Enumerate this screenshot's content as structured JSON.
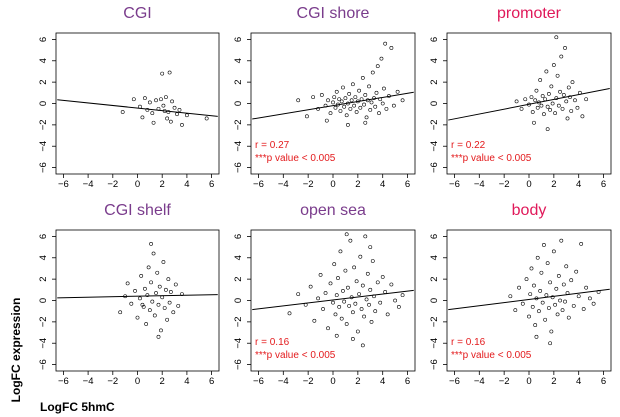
{
  "figure": {
    "ylabel": "LogFC expression",
    "xlabel": "LogFC 5hmC"
  },
  "colors": {
    "title_purple": "#7a3c8c",
    "title_pink": "#e0195a",
    "annotation_red": "#e31a1c",
    "points": "#000000",
    "line": "#000000"
  },
  "chart_data": [
    {
      "type": "scatter",
      "title": "CGI",
      "title_color": "purple",
      "xlim": [
        -6,
        6
      ],
      "ylim": [
        -6,
        6
      ],
      "xticks": [
        -6,
        -4,
        -2,
        0,
        2,
        4,
        6
      ],
      "yticks": [
        -6,
        -4,
        -2,
        0,
        2,
        4,
        6
      ],
      "regression": {
        "x": [
          -6.5,
          6.5
        ],
        "y": [
          0.35,
          -1.2
        ]
      },
      "annotation": null,
      "points": [
        [
          -1.2,
          -0.8
        ],
        [
          -0.3,
          0.4
        ],
        [
          0.2,
          -0.3
        ],
        [
          0.4,
          -1.3
        ],
        [
          0.6,
          0.5
        ],
        [
          0.8,
          -0.6
        ],
        [
          1.0,
          0.1
        ],
        [
          1.2,
          -0.9
        ],
        [
          1.3,
          -1.8
        ],
        [
          1.5,
          0.3
        ],
        [
          1.7,
          -0.5
        ],
        [
          1.9,
          0.4
        ],
        [
          2.0,
          2.8
        ],
        [
          2.1,
          -0.2
        ],
        [
          2.2,
          -0.7
        ],
        [
          2.3,
          0.6
        ],
        [
          2.4,
          -1.4
        ],
        [
          2.5,
          -0.8
        ],
        [
          2.6,
          2.9
        ],
        [
          2.7,
          -1.7
        ],
        [
          2.8,
          0.2
        ],
        [
          3.0,
          -0.4
        ],
        [
          3.2,
          -1.0
        ],
        [
          3.4,
          -0.6
        ],
        [
          3.6,
          -2.0
        ],
        [
          4.0,
          -1.1
        ],
        [
          5.6,
          -1.4
        ]
      ]
    },
    {
      "type": "scatter",
      "title": "CGI shore",
      "title_color": "purple",
      "xlim": [
        -6,
        6
      ],
      "ylim": [
        -6,
        6
      ],
      "xticks": [
        -6,
        -4,
        -2,
        0,
        2,
        4,
        6
      ],
      "yticks": [
        -6,
        -4,
        -2,
        0,
        2,
        4,
        6
      ],
      "regression": {
        "x": [
          -6.5,
          6.5
        ],
        "y": [
          -1.45,
          1.05
        ]
      },
      "annotation": {
        "lines": [
          "r = 0.27",
          "***p value < 0.005"
        ]
      },
      "points": [
        [
          -2.8,
          0.3
        ],
        [
          -2.1,
          -1.2
        ],
        [
          -1.6,
          0.6
        ],
        [
          -1.2,
          -0.5
        ],
        [
          -0.9,
          0.8
        ],
        [
          -0.6,
          -0.2
        ],
        [
          -0.4,
          0.3
        ],
        [
          -0.2,
          -0.9
        ],
        [
          0.0,
          0.1
        ],
        [
          0.1,
          0.6
        ],
        [
          0.2,
          -0.4
        ],
        [
          0.3,
          1.1
        ],
        [
          0.4,
          -0.1
        ],
        [
          0.5,
          0.4
        ],
        [
          0.6,
          -0.7
        ],
        [
          0.7,
          0.2
        ],
        [
          0.8,
          1.5
        ],
        [
          0.9,
          -0.3
        ],
        [
          1.0,
          0.5
        ],
        [
          1.1,
          -1.1
        ],
        [
          1.2,
          0.0
        ],
        [
          1.3,
          0.9
        ],
        [
          1.4,
          -0.5
        ],
        [
          1.5,
          0.3
        ],
        [
          1.6,
          1.8
        ],
        [
          1.7,
          -0.2
        ],
        [
          1.8,
          0.6
        ],
        [
          1.9,
          -0.8
        ],
        [
          2.0,
          0.2
        ],
        [
          2.1,
          1.2
        ],
        [
          2.2,
          -0.4
        ],
        [
          2.3,
          0.4
        ],
        [
          2.4,
          2.4
        ],
        [
          2.5,
          -0.1
        ],
        [
          2.6,
          0.8
        ],
        [
          2.7,
          -1.3
        ],
        [
          2.8,
          0.3
        ],
        [
          2.9,
          1.6
        ],
        [
          3.0,
          -0.6
        ],
        [
          3.1,
          0.1
        ],
        [
          3.2,
          2.9
        ],
        [
          3.3,
          0.5
        ],
        [
          3.4,
          -0.3
        ],
        [
          3.5,
          1.0
        ],
        [
          3.6,
          3.5
        ],
        [
          3.7,
          -0.9
        ],
        [
          3.8,
          0.4
        ],
        [
          3.9,
          4.2
        ],
        [
          4.0,
          0.0
        ],
        [
          4.1,
          1.4
        ],
        [
          4.2,
          5.6
        ],
        [
          4.3,
          -0.5
        ],
        [
          4.5,
          0.7
        ],
        [
          4.7,
          5.2
        ],
        [
          4.9,
          -0.2
        ],
        [
          5.2,
          1.1
        ],
        [
          5.6,
          0.3
        ],
        [
          -0.5,
          -1.6
        ],
        [
          1.2,
          -2.0
        ],
        [
          2.6,
          -1.8
        ]
      ]
    },
    {
      "type": "scatter",
      "title": "promoter",
      "title_color": "pink",
      "xlim": [
        -6,
        6
      ],
      "ylim": [
        -6,
        6
      ],
      "xticks": [
        -6,
        -4,
        -2,
        0,
        2,
        4,
        6
      ],
      "yticks": [
        -6,
        -4,
        -2,
        0,
        2,
        4,
        6
      ],
      "regression": {
        "x": [
          -6.5,
          6.5
        ],
        "y": [
          -1.55,
          1.4
        ]
      },
      "annotation": {
        "lines": [
          "r = 0.22",
          "***p value < 0.005"
        ]
      },
      "points": [
        [
          -1.0,
          0.2
        ],
        [
          -0.6,
          -0.5
        ],
        [
          -0.3,
          0.4
        ],
        [
          0.0,
          -0.1
        ],
        [
          0.2,
          0.6
        ],
        [
          0.3,
          -0.8
        ],
        [
          0.5,
          0.3
        ],
        [
          0.6,
          1.2
        ],
        [
          0.7,
          -0.4
        ],
        [
          0.8,
          0.1
        ],
        [
          0.9,
          2.2
        ],
        [
          1.0,
          -0.2
        ],
        [
          1.1,
          0.7
        ],
        [
          1.2,
          -1.0
        ],
        [
          1.3,
          0.4
        ],
        [
          1.4,
          3.0
        ],
        [
          1.5,
          -0.3
        ],
        [
          1.6,
          0.9
        ],
        [
          1.7,
          -0.6
        ],
        [
          1.8,
          1.6
        ],
        [
          1.9,
          0.0
        ],
        [
          2.0,
          3.6
        ],
        [
          2.1,
          -0.9
        ],
        [
          2.2,
          0.5
        ],
        [
          2.3,
          2.6
        ],
        [
          2.4,
          -0.2
        ],
        [
          2.5,
          1.1
        ],
        [
          2.6,
          4.4
        ],
        [
          2.7,
          -0.5
        ],
        [
          2.8,
          0.8
        ],
        [
          2.9,
          5.2
        ],
        [
          3.0,
          0.2
        ],
        [
          3.1,
          -1.4
        ],
        [
          3.2,
          1.5
        ],
        [
          3.3,
          0.6
        ],
        [
          3.4,
          -0.7
        ],
        [
          3.5,
          2.0
        ],
        [
          3.7,
          0.3
        ],
        [
          3.9,
          -0.4
        ],
        [
          4.1,
          1.0
        ],
        [
          4.3,
          -1.2
        ],
        [
          4.6,
          0.4
        ],
        [
          2.2,
          6.2
        ],
        [
          1.5,
          -2.4
        ],
        [
          0.4,
          -1.8
        ]
      ]
    },
    {
      "type": "scatter",
      "title": "CGI shelf",
      "title_color": "purple",
      "xlim": [
        -6,
        6
      ],
      "ylim": [
        -6,
        6
      ],
      "xticks": [
        -6,
        -4,
        -2,
        0,
        2,
        4,
        6
      ],
      "yticks": [
        -6,
        -4,
        -2,
        0,
        2,
        4,
        6
      ],
      "regression": {
        "x": [
          -6.5,
          6.5
        ],
        "y": [
          0.25,
          0.55
        ]
      },
      "annotation": null,
      "points": [
        [
          -1.4,
          -1.1
        ],
        [
          -1.0,
          0.4
        ],
        [
          -0.8,
          1.6
        ],
        [
          -0.5,
          -0.3
        ],
        [
          -0.2,
          0.9
        ],
        [
          0.0,
          -1.6
        ],
        [
          0.2,
          0.2
        ],
        [
          0.3,
          2.3
        ],
        [
          0.5,
          -0.6
        ],
        [
          0.6,
          1.1
        ],
        [
          0.7,
          -2.2
        ],
        [
          0.8,
          0.5
        ],
        [
          0.9,
          3.1
        ],
        [
          1.0,
          -0.9
        ],
        [
          1.1,
          1.7
        ],
        [
          1.2,
          -0.1
        ],
        [
          1.3,
          4.4
        ],
        [
          1.4,
          -1.4
        ],
        [
          1.5,
          0.7
        ],
        [
          1.6,
          2.6
        ],
        [
          1.7,
          -0.4
        ],
        [
          1.8,
          1.3
        ],
        [
          1.9,
          -2.8
        ],
        [
          2.0,
          0.3
        ],
        [
          2.1,
          3.6
        ],
        [
          2.2,
          -0.7
        ],
        [
          2.3,
          1.0
        ],
        [
          2.4,
          -1.8
        ],
        [
          2.5,
          2.0
        ],
        [
          2.6,
          -0.2
        ],
        [
          2.7,
          0.8
        ],
        [
          2.9,
          -1.1
        ],
        [
          3.1,
          1.5
        ],
        [
          3.3,
          -0.5
        ],
        [
          3.6,
          0.6
        ],
        [
          1.1,
          5.3
        ],
        [
          1.7,
          -3.4
        ],
        [
          0.4,
          -0.4
        ]
      ]
    },
    {
      "type": "scatter",
      "title": "open sea",
      "title_color": "purple",
      "xlim": [
        -6,
        6
      ],
      "ylim": [
        -6,
        6
      ],
      "xticks": [
        -6,
        -4,
        -2,
        0,
        2,
        4,
        6
      ],
      "yticks": [
        -6,
        -4,
        -2,
        0,
        2,
        4,
        6
      ],
      "regression": {
        "x": [
          -6.5,
          6.5
        ],
        "y": [
          -0.85,
          0.95
        ]
      },
      "annotation": {
        "lines": [
          "r = 0.16",
          "***p value < 0.005"
        ]
      },
      "points": [
        [
          -3.5,
          -1.2
        ],
        [
          -2.8,
          0.6
        ],
        [
          -2.2,
          -0.4
        ],
        [
          -1.8,
          1.3
        ],
        [
          -1.5,
          -1.9
        ],
        [
          -1.2,
          0.2
        ],
        [
          -1.0,
          2.4
        ],
        [
          -0.8,
          -0.8
        ],
        [
          -0.6,
          0.7
        ],
        [
          -0.4,
          -2.6
        ],
        [
          -0.2,
          1.6
        ],
        [
          0.0,
          -0.2
        ],
        [
          0.1,
          3.4
        ],
        [
          0.2,
          -1.3
        ],
        [
          0.3,
          0.5
        ],
        [
          0.4,
          2.1
        ],
        [
          0.5,
          -0.6
        ],
        [
          0.6,
          4.6
        ],
        [
          0.7,
          -1.7
        ],
        [
          0.8,
          0.9
        ],
        [
          0.9,
          -0.1
        ],
        [
          1.0,
          2.8
        ],
        [
          1.1,
          -2.2
        ],
        [
          1.2,
          1.2
        ],
        [
          1.3,
          -0.5
        ],
        [
          1.4,
          5.6
        ],
        [
          1.5,
          0.3
        ],
        [
          1.6,
          -1.1
        ],
        [
          1.7,
          3.1
        ],
        [
          1.8,
          -0.3
        ],
        [
          1.9,
          1.8
        ],
        [
          2.0,
          -2.9
        ],
        [
          2.1,
          0.6
        ],
        [
          2.2,
          4.1
        ],
        [
          2.3,
          -0.8
        ],
        [
          2.4,
          1.4
        ],
        [
          2.5,
          -1.5
        ],
        [
          2.6,
          6.0
        ],
        [
          2.7,
          0.1
        ],
        [
          2.8,
          2.5
        ],
        [
          2.9,
          -0.4
        ],
        [
          3.0,
          1.0
        ],
        [
          3.1,
          -2.0
        ],
        [
          3.2,
          3.7
        ],
        [
          3.3,
          0.4
        ],
        [
          3.4,
          -1.0
        ],
        [
          3.6,
          1.7
        ],
        [
          3.8,
          -0.2
        ],
        [
          4.0,
          2.2
        ],
        [
          4.2,
          0.8
        ],
        [
          4.4,
          -1.3
        ],
        [
          4.7,
          1.5
        ],
        [
          5.0,
          0.0
        ],
        [
          5.3,
          -0.6
        ],
        [
          5.6,
          0.5
        ],
        [
          0.3,
          -3.3
        ],
        [
          1.6,
          -3.6
        ],
        [
          2.4,
          -4.2
        ],
        [
          3.0,
          5.0
        ],
        [
          1.1,
          6.2
        ]
      ]
    },
    {
      "type": "scatter",
      "title": "body",
      "title_color": "pink",
      "xlim": [
        -6,
        6
      ],
      "ylim": [
        -6,
        6
      ],
      "xticks": [
        -6,
        -4,
        -2,
        0,
        2,
        4,
        6
      ],
      "yticks": [
        -6,
        -4,
        -2,
        0,
        2,
        4,
        6
      ],
      "regression": {
        "x": [
          -6.5,
          6.5
        ],
        "y": [
          -0.85,
          1.05
        ]
      },
      "annotation": {
        "lines": [
          "r = 0.16",
          "***p value < 0.005"
        ]
      },
      "points": [
        [
          -1.5,
          0.4
        ],
        [
          -1.1,
          -0.9
        ],
        [
          -0.8,
          1.2
        ],
        [
          -0.5,
          -0.3
        ],
        [
          -0.2,
          2.0
        ],
        [
          0.0,
          -1.5
        ],
        [
          0.1,
          0.6
        ],
        [
          0.2,
          3.0
        ],
        [
          0.3,
          -0.6
        ],
        [
          0.4,
          1.4
        ],
        [
          0.5,
          -2.3
        ],
        [
          0.6,
          0.2
        ],
        [
          0.7,
          4.0
        ],
        [
          0.8,
          -1.0
        ],
        [
          0.9,
          0.9
        ],
        [
          1.0,
          2.6
        ],
        [
          1.1,
          -0.2
        ],
        [
          1.2,
          5.2
        ],
        [
          1.3,
          -1.8
        ],
        [
          1.4,
          0.5
        ],
        [
          1.5,
          3.5
        ],
        [
          1.6,
          -0.7
        ],
        [
          1.7,
          1.7
        ],
        [
          1.8,
          -2.9
        ],
        [
          1.9,
          0.3
        ],
        [
          2.0,
          4.6
        ],
        [
          2.1,
          -0.4
        ],
        [
          2.2,
          1.1
        ],
        [
          2.3,
          -1.3
        ],
        [
          2.4,
          2.3
        ],
        [
          2.5,
          0.0
        ],
        [
          2.6,
          5.6
        ],
        [
          2.7,
          -0.9
        ],
        [
          2.8,
          1.5
        ],
        [
          2.9,
          -0.1
        ],
        [
          3.0,
          3.2
        ],
        [
          3.1,
          0.7
        ],
        [
          3.2,
          -1.6
        ],
        [
          3.4,
          1.9
        ],
        [
          3.6,
          -0.5
        ],
        [
          3.8,
          2.7
        ],
        [
          4.0,
          0.4
        ],
        [
          4.2,
          5.3
        ],
        [
          4.4,
          -0.8
        ],
        [
          4.6,
          1.2
        ],
        [
          4.9,
          0.2
        ],
        [
          5.2,
          -0.3
        ],
        [
          5.6,
          0.8
        ],
        [
          0.6,
          -3.4
        ],
        [
          1.7,
          -4.0
        ]
      ]
    }
  ]
}
